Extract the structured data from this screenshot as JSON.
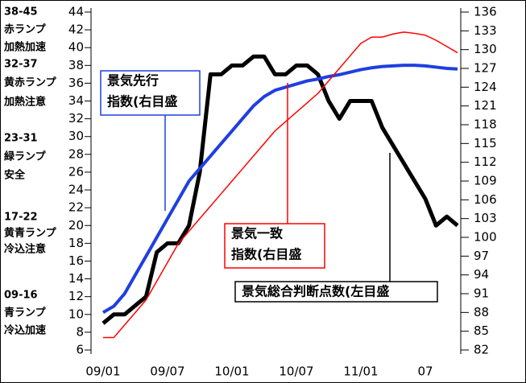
{
  "chart_data": {
    "type": "line",
    "categories": [
      "09/01",
      null,
      null,
      null,
      null,
      null,
      "09/07",
      null,
      null,
      null,
      null,
      null,
      "10/01",
      null,
      null,
      null,
      null,
      null,
      "10/07",
      null,
      null,
      null,
      null,
      null,
      "11/01",
      null,
      null,
      null,
      null,
      null,
      "07",
      null,
      null,
      null
    ],
    "ylim": [
      6,
      44
    ],
    "yticks": [
      6,
      8,
      10,
      12,
      14,
      16,
      18,
      20,
      22,
      24,
      26,
      28,
      30,
      32,
      34,
      36,
      38,
      40,
      42,
      44
    ],
    "y2lim": [
      82,
      136
    ],
    "y2ticks": [
      82,
      85,
      88,
      91,
      94,
      97,
      100,
      103,
      106,
      109,
      112,
      115,
      118,
      121,
      124,
      127,
      130,
      133,
      136
    ],
    "zones": [
      [
        "38-45",
        "赤ランプ",
        "加熱加速"
      ],
      [
        "32-37",
        "黄赤ランプ",
        "加熱注意"
      ],
      [
        "23-31",
        "緑ランプ",
        "安全"
      ],
      [
        "17-22",
        "黄青ランプ",
        "冷込注意"
      ],
      [
        "09-16",
        "青ランプ",
        "冷込加速"
      ]
    ],
    "series": [
      {
        "label": [
          "景気総合判断点数(左目盛"
        ],
        "color": "#000000",
        "axis": "y",
        "values": [
          9,
          10,
          10,
          11,
          12,
          17,
          18,
          18,
          20,
          26,
          37,
          37,
          38,
          38,
          39,
          39,
          37,
          37,
          38,
          38,
          37,
          34,
          32,
          34,
          34,
          34,
          31,
          29,
          27,
          25,
          23,
          20,
          21,
          20
        ]
      },
      {
        "label": [
          "景気先行",
          "指数(右目盛"
        ],
        "color": "#1f3fe0",
        "axis": "y2",
        "values": [
          88,
          89,
          91,
          94,
          97,
          100,
          103,
          106,
          109,
          111,
          113,
          115,
          117,
          119,
          121,
          122.5,
          123.5,
          124,
          124.5,
          125,
          125.3,
          125.7,
          126,
          126.4,
          126.8,
          127.1,
          127.3,
          127.4,
          127.5,
          127.5,
          127.4,
          127.2,
          127,
          126.9
        ]
      },
      {
        "label": [
          "景気一致",
          "指数(右目盛"
        ],
        "color": "#ff0000",
        "axis": "y2",
        "values": [
          84,
          84,
          86,
          88,
          90,
          93,
          96,
          99,
          101,
          103,
          105,
          107,
          109,
          111,
          113,
          115,
          117,
          118.5,
          120,
          121.5,
          123,
          125,
          127,
          129,
          131,
          132,
          132,
          132.5,
          132.8,
          132.6,
          132.3,
          131.5,
          130.5,
          129.5
        ]
      }
    ]
  }
}
